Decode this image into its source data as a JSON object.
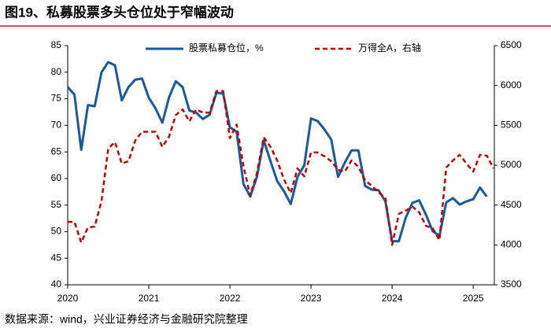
{
  "chart_data": {
    "type": "line",
    "title": "图19、私募股票多头仓位处于窄幅波动",
    "source": "数据来源：wind，兴业证券经济与金融研究院整理",
    "x": [
      2020,
      2020.083,
      2020.167,
      2020.25,
      2020.333,
      2020.417,
      2020.5,
      2020.583,
      2020.667,
      2020.75,
      2020.833,
      2020.917,
      2021,
      2021.083,
      2021.167,
      2021.25,
      2021.333,
      2021.417,
      2021.5,
      2021.583,
      2021.667,
      2021.75,
      2021.833,
      2021.917,
      2022,
      2022.083,
      2022.167,
      2022.25,
      2022.333,
      2022.417,
      2022.5,
      2022.583,
      2022.667,
      2022.75,
      2022.833,
      2022.917,
      2023,
      2023.083,
      2023.167,
      2023.25,
      2023.333,
      2023.417,
      2023.5,
      2023.583,
      2023.667,
      2023.75,
      2023.833,
      2023.917,
      2024,
      2024.083,
      2024.167,
      2024.25,
      2024.333,
      2024.417,
      2024.5,
      2024.583,
      2024.667,
      2024.75,
      2024.833,
      2024.917,
      2025,
      2025.083,
      2025.167,
      2025.25
    ],
    "xlim": [
      2020,
      2025.26
    ],
    "xticks": [
      2020,
      2021,
      2022,
      2023,
      2024,
      2025
    ],
    "ylim": [
      40,
      85
    ],
    "yticks": [
      40,
      45,
      50,
      55,
      60,
      65,
      70,
      75,
      80,
      85
    ],
    "y2lim": [
      3500,
      6500
    ],
    "y2ticks": [
      3500,
      4000,
      4500,
      5000,
      5500,
      6000,
      6500
    ],
    "legend": "top",
    "series": [
      {
        "name": "股票私募仓位，%",
        "color": "#1a5a9c",
        "style": "solid",
        "values": [
          77.2,
          75.8,
          65.4,
          73.8,
          73.6,
          80,
          81.9,
          81.3,
          74.7,
          77.2,
          78.6,
          78.8,
          75.2,
          73.2,
          70.5,
          75.3,
          78.3,
          77.2,
          72.8,
          72.4,
          71.2,
          72.0,
          76.1,
          76.0,
          69.6,
          68.8,
          59.0,
          56.6,
          60.3,
          67.2,
          63.3,
          59.5,
          57.6,
          55.2,
          60.3,
          62.5,
          71.3,
          70.8,
          69.2,
          67.3,
          60.3,
          63.0,
          65.3,
          65.3,
          58.6,
          57.9,
          57.8,
          55.7,
          48.2,
          48.2,
          52.6,
          55.4,
          55.9,
          53.2,
          50.1,
          49.2,
          55.5,
          56.3,
          55.1,
          55.7,
          56.1,
          58.3,
          56.6,
          null
        ]
      },
      {
        "name": "万得全A，右轴",
        "color": "#c00000",
        "style": "dashed",
        "axis": "y2",
        "values": [
          4290,
          4290,
          4030,
          4220,
          4230,
          4550,
          5210,
          5290,
          5020,
          5050,
          5310,
          5420,
          5420,
          5420,
          5230,
          5360,
          5630,
          5700,
          5550,
          5700,
          5660,
          5660,
          5930,
          5930,
          5340,
          5510,
          4990,
          4620,
          4900,
          5350,
          5230,
          5060,
          4820,
          4650,
          4960,
          4860,
          5160,
          5160,
          5110,
          5050,
          4940,
          4920,
          5060,
          4980,
          4810,
          4740,
          4660,
          4590,
          4000,
          4390,
          4430,
          4480,
          4410,
          4240,
          4210,
          4060,
          4970,
          5060,
          5130,
          5020,
          4920,
          5130,
          5120,
          4960
        ]
      }
    ]
  }
}
